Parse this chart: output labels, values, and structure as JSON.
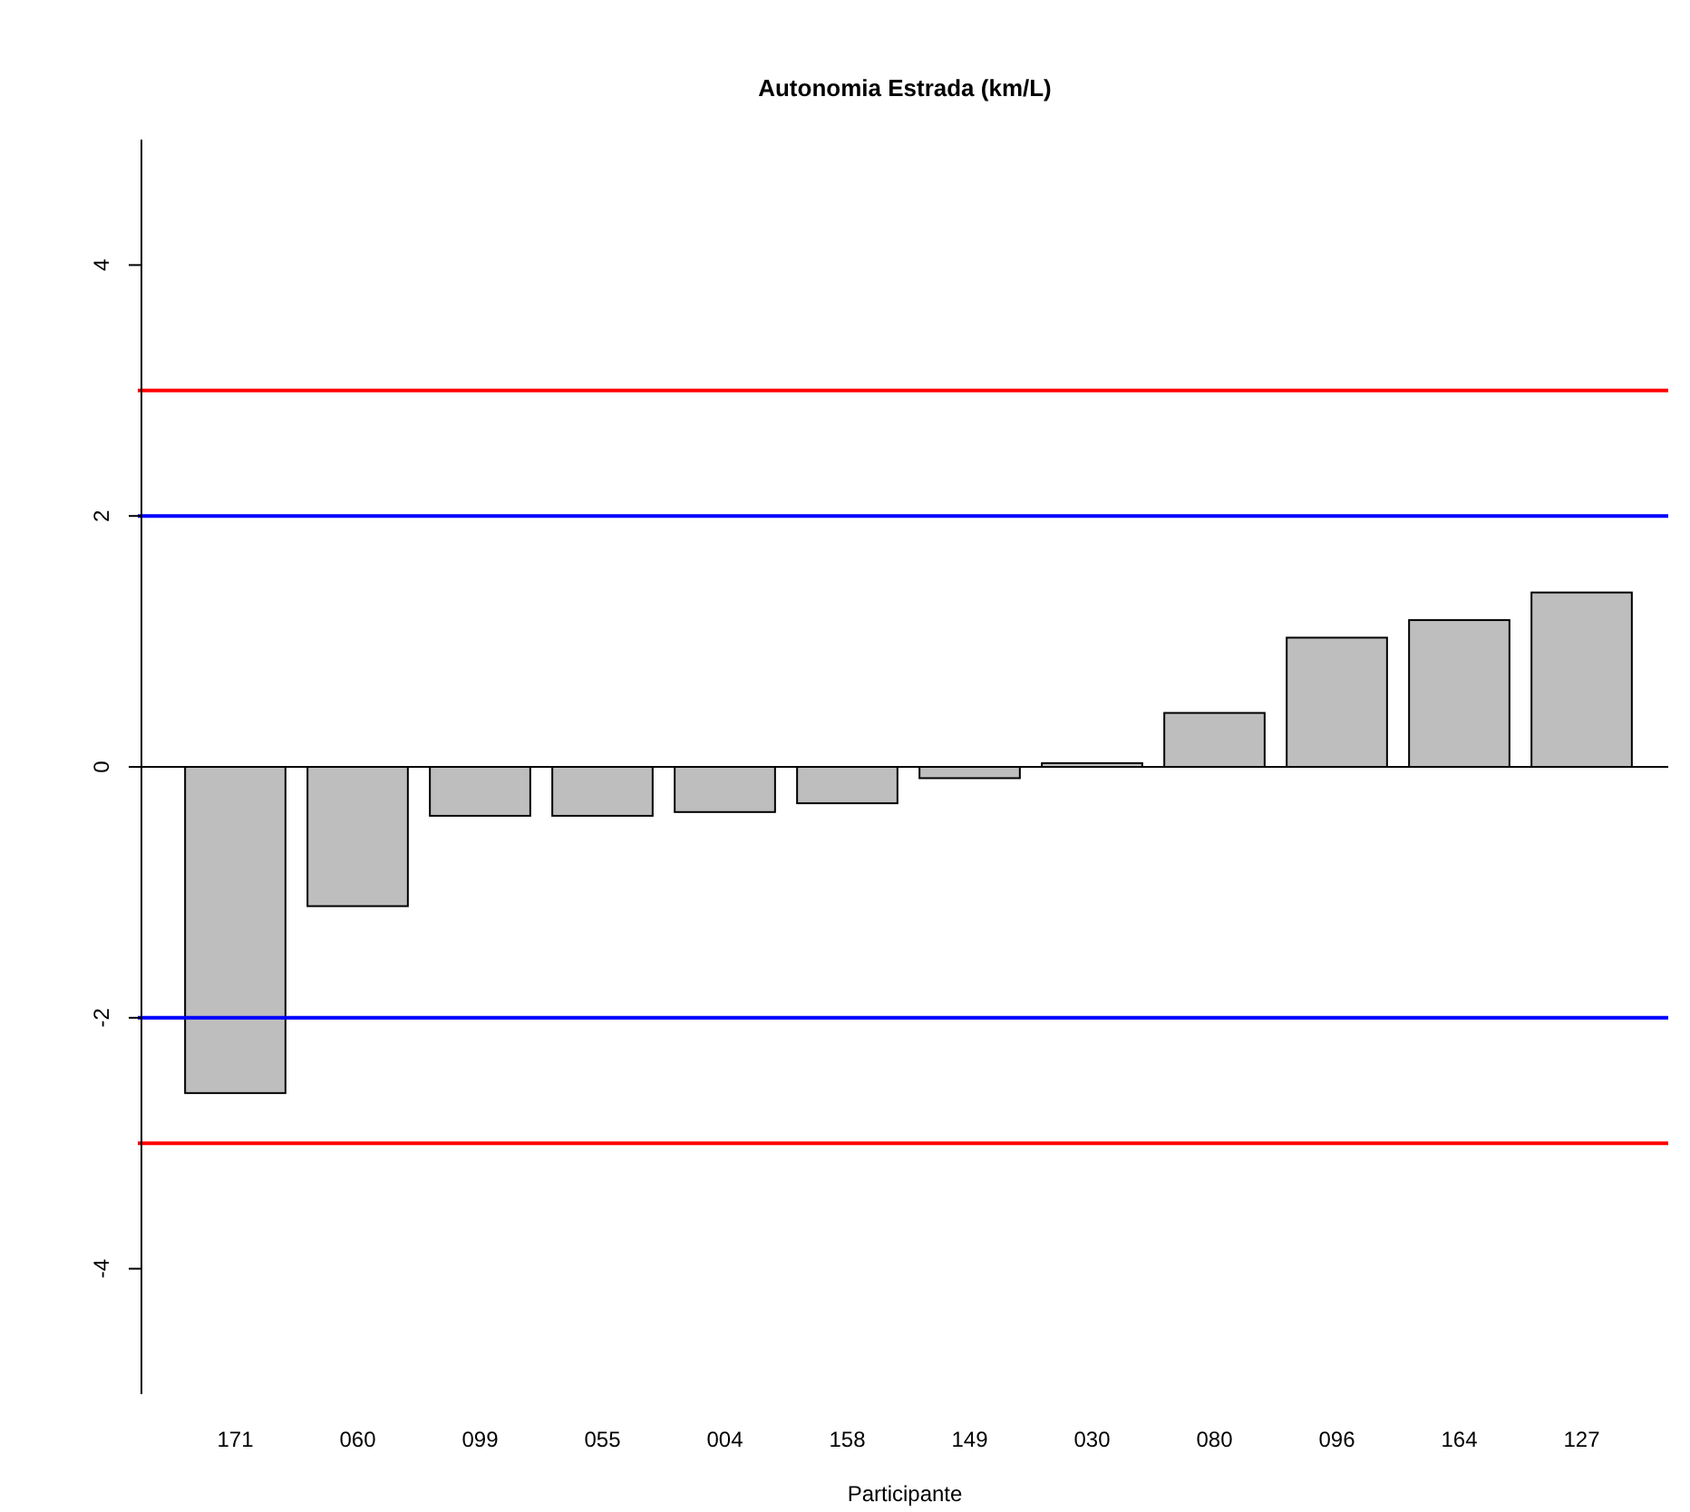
{
  "chart_data": {
    "type": "bar",
    "title": "Autonomia Estrada (km/L)",
    "xlabel": "Participante",
    "categories": [
      "171",
      "060",
      "099",
      "055",
      "004",
      "158",
      "149",
      "030",
      "080",
      "096",
      "164",
      "127"
    ],
    "values": [
      -2.6,
      -1.11,
      -0.39,
      -0.39,
      -0.36,
      -0.29,
      -0.09,
      0.03,
      0.43,
      1.03,
      1.17,
      1.39
    ],
    "color": "#bebebe",
    "ylim": [
      -5,
      5
    ],
    "yticks": [
      -4,
      -2,
      0,
      2,
      4
    ],
    "grid": false,
    "ref_lines": [
      {
        "axis": "y",
        "value": 3,
        "color": "#ff0000"
      },
      {
        "axis": "y",
        "value": 2,
        "color": "#0000ff"
      },
      {
        "axis": "y",
        "value": 0,
        "color": "#000000"
      },
      {
        "axis": "y",
        "value": -2,
        "color": "#0000ff"
      },
      {
        "axis": "y",
        "value": -3,
        "color": "#ff0000"
      }
    ]
  }
}
